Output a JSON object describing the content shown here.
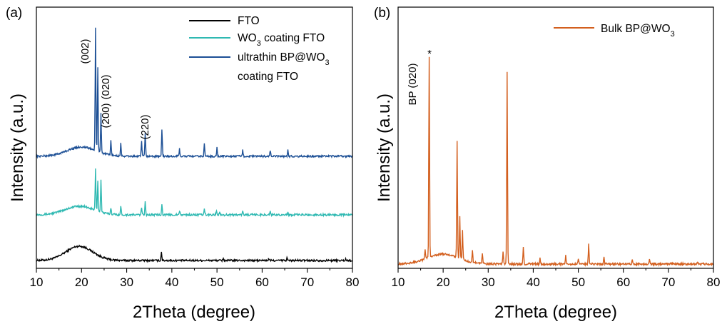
{
  "chart_data": [
    {
      "panel_label": "(a)",
      "type": "line",
      "xlabel": "2Theta (degree)",
      "ylabel": "Intensity (a.u.)",
      "xlim": [
        10,
        80
      ],
      "xticks": [
        10,
        20,
        30,
        40,
        50,
        60,
        70,
        80
      ],
      "legend_position": "top-right",
      "series": [
        {
          "name": "FTO",
          "color": "#000000",
          "peaks": [
            [
              37.7,
              0.18
            ],
            [
              51.4,
              0.05
            ],
            [
              61.5,
              0.04
            ],
            [
              65.5,
              0.05
            ],
            [
              78.5,
              0.03
            ]
          ]
        },
        {
          "name": "WO3 coating FTO",
          "name_parts": [
            "WO",
            "3",
            " coating FTO"
          ],
          "color": "#2fb9b2",
          "peaks": [
            [
              23.1,
              0.82
            ],
            [
              23.6,
              0.62
            ],
            [
              24.3,
              0.66
            ],
            [
              26.5,
              0.13
            ],
            [
              28.7,
              0.16
            ],
            [
              33.3,
              0.15
            ],
            [
              34.1,
              0.28
            ],
            [
              37.8,
              0.22
            ],
            [
              41.7,
              0.08
            ],
            [
              47.2,
              0.12
            ],
            [
              49.9,
              0.09
            ],
            [
              50.6,
              0.08
            ],
            [
              55.7,
              0.07
            ],
            [
              61.8,
              0.06
            ],
            [
              65.7,
              0.05
            ]
          ]
        },
        {
          "name": "ultrathin BP@WO3 coating FTO",
          "name_parts": [
            "ultrathin BP@WO",
            "3",
            "coating FTO"
          ],
          "color": "#1c4f95",
          "peaks": [
            [
              23.1,
              1.0
            ],
            [
              23.6,
              0.68
            ],
            [
              24.3,
              0.32
            ],
            [
              26.5,
              0.12
            ],
            [
              28.7,
              0.1
            ],
            [
              33.3,
              0.12
            ],
            [
              34.1,
              0.18
            ],
            [
              37.8,
              0.22
            ],
            [
              41.7,
              0.06
            ],
            [
              47.2,
              0.1
            ],
            [
              50.0,
              0.07
            ],
            [
              55.7,
              0.05
            ],
            [
              61.8,
              0.05
            ],
            [
              65.7,
              0.05
            ]
          ]
        }
      ],
      "annotations": [
        "(002)",
        "(200)",
        "(020)",
        "(220)"
      ]
    },
    {
      "panel_label": "(b)",
      "type": "line",
      "xlabel": "2Theta (degree)",
      "ylabel": "Intensity (a.u.)",
      "xlim": [
        10,
        80
      ],
      "xticks": [
        10,
        20,
        30,
        40,
        50,
        60,
        70,
        80
      ],
      "legend_position": "top-right",
      "series": [
        {
          "name": "Bulk BP@WO3",
          "name_parts": [
            "Bulk BP@WO",
            "3"
          ],
          "color": "#d35f1e",
          "peaks": [
            [
              16.0,
              0.05
            ],
            [
              16.9,
              0.97
            ],
            [
              23.1,
              0.57
            ],
            [
              23.7,
              0.2
            ],
            [
              24.3,
              0.14
            ],
            [
              26.5,
              0.06
            ],
            [
              28.7,
              0.05
            ],
            [
              33.3,
              0.06
            ],
            [
              34.2,
              0.94
            ],
            [
              37.8,
              0.08
            ],
            [
              41.5,
              0.03
            ],
            [
              47.2,
              0.04
            ],
            [
              50.0,
              0.03
            ],
            [
              52.3,
              0.1
            ],
            [
              55.7,
              0.03
            ],
            [
              62.0,
              0.02
            ],
            [
              65.8,
              0.02
            ],
            [
              76.5,
              0.01
            ]
          ]
        }
      ],
      "annotations": [
        "BP (020)",
        "*"
      ]
    }
  ]
}
